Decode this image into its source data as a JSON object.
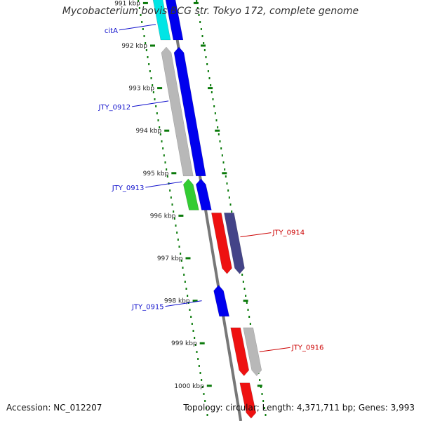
{
  "title": "Mycobacterium bovis BCG str. Tokyo 172, complete genome",
  "footer": {
    "accession": "Accession: NC_012207",
    "topology": "Topology: circular; Length: 4,371,711 bp; Genes: 3,993"
  },
  "scale": {
    "ticks": [
      {
        "label": "991 kbp",
        "kbp": 991
      },
      {
        "label": "992 kbp",
        "kbp": 992
      },
      {
        "label": "993 kbp",
        "kbp": 993
      },
      {
        "label": "994 kbp",
        "kbp": 994
      },
      {
        "label": "995 kbp",
        "kbp": 995
      },
      {
        "label": "996 kbp",
        "kbp": 996
      },
      {
        "label": "997 kbp",
        "kbp": 997
      },
      {
        "label": "998 kbp",
        "kbp": 998
      },
      {
        "label": "999 kbp",
        "kbp": 999
      },
      {
        "label": "1000 kbp",
        "kbp": 1000
      }
    ]
  },
  "features": [
    {
      "strand": "+",
      "start": 990.4,
      "end": 991.9,
      "color": "#00e5e5",
      "type": "gene"
    },
    {
      "strand": "+",
      "start": 990.4,
      "end": 991.9,
      "color": "#0000ee",
      "type": "cds"
    },
    {
      "strand": "+",
      "start": 992.0,
      "end": 995.1,
      "color": "#b8b8b8",
      "type": "gene"
    },
    {
      "strand": "+",
      "start": 992.0,
      "end": 995.1,
      "color": "#0000ee",
      "type": "cds"
    },
    {
      "strand": "+",
      "start": 995.1,
      "end": 995.9,
      "color": "#33cc33",
      "type": "gene"
    },
    {
      "strand": "+",
      "start": 995.1,
      "end": 995.9,
      "color": "#0000ee",
      "type": "cds"
    },
    {
      "strand": "-",
      "start": 995.9,
      "end": 997.4,
      "color": "#ee1111",
      "type": "gene"
    },
    {
      "strand": "-",
      "start": 995.9,
      "end": 997.4,
      "color": "#444488",
      "type": "cds"
    },
    {
      "strand": "+",
      "start": 997.6,
      "end": 998.4,
      "color": "#0000ee",
      "type": "cds"
    },
    {
      "strand": "-",
      "start": 998.6,
      "end": 999.8,
      "color": "#ee1111",
      "type": "gene"
    },
    {
      "strand": "-",
      "start": 998.6,
      "end": 999.8,
      "color": "#b8b8b8",
      "type": "cds"
    },
    {
      "strand": "-",
      "start": 999.9,
      "end": 1000.8,
      "color": "#ee1111",
      "type": "gene"
    }
  ],
  "labels": [
    {
      "text": "citA",
      "kbp": 991.6,
      "side": "left",
      "color": "#1010cc"
    },
    {
      "text": "JTY_0912",
      "kbp": 993.4,
      "side": "left",
      "color": "#1010cc"
    },
    {
      "text": "JTY_0913",
      "kbp": 995.3,
      "side": "left",
      "color": "#1010cc"
    },
    {
      "text": "JTY_0914",
      "kbp": 996.4,
      "side": "right",
      "color": "#cc0000"
    },
    {
      "text": "JTY_0915",
      "kbp": 998.1,
      "side": "left",
      "color": "#1010cc"
    },
    {
      "text": "JTY_0916",
      "kbp": 999.1,
      "side": "right",
      "color": "#cc0000"
    }
  ]
}
